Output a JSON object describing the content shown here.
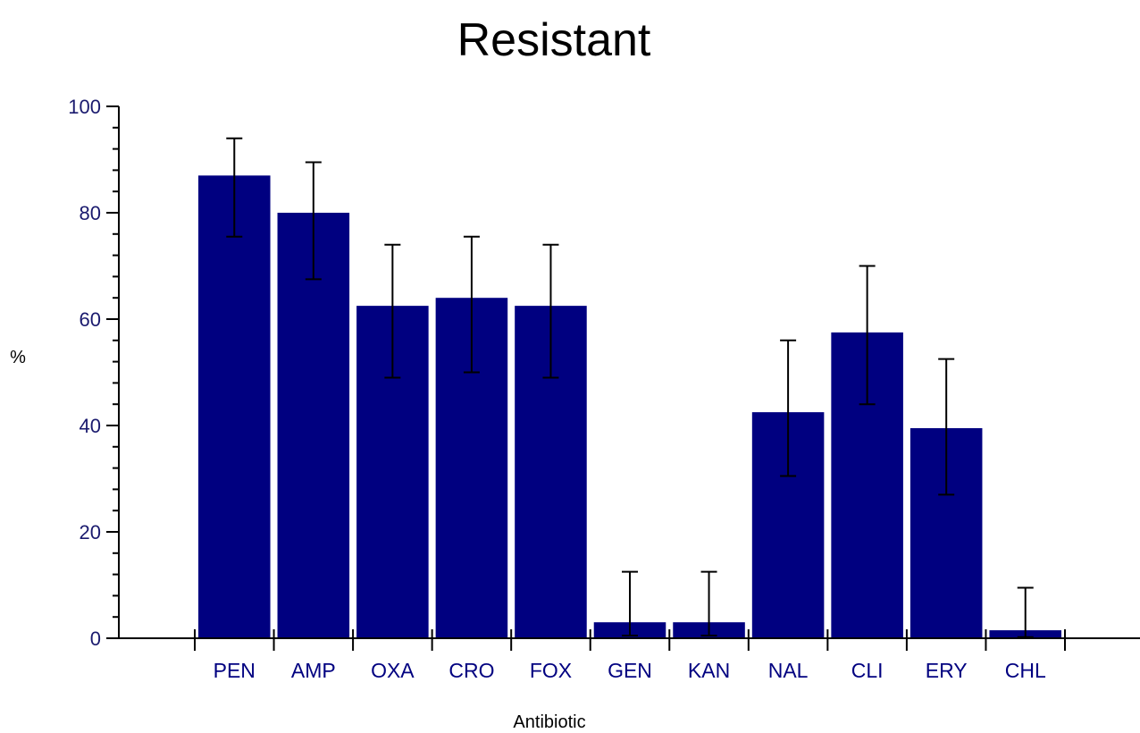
{
  "chart_data": {
    "type": "bar",
    "title": "Resistant",
    "xlabel": "Antibiotic",
    "ylabel": "%",
    "ylim": [
      0,
      100
    ],
    "yticks": [
      0,
      20,
      40,
      60,
      80,
      100
    ],
    "grid": false,
    "legend": "none",
    "bar_color": "#000080",
    "categories": [
      "PEN",
      "AMP",
      "OXA",
      "CRO",
      "FOX",
      "GEN",
      "KAN",
      "NAL",
      "CLI",
      "ERY",
      "CHL"
    ],
    "values": [
      87,
      80,
      62.5,
      64,
      62.5,
      3,
      3,
      42.5,
      57.5,
      39.5,
      1.5
    ],
    "error_low": [
      75.5,
      67.5,
      49,
      50,
      49,
      0.5,
      0.5,
      30.5,
      44,
      27,
      0.2
    ],
    "error_high": [
      94,
      89.5,
      74,
      75.5,
      74,
      12.5,
      12.5,
      56,
      70,
      52.5,
      9.5
    ]
  }
}
